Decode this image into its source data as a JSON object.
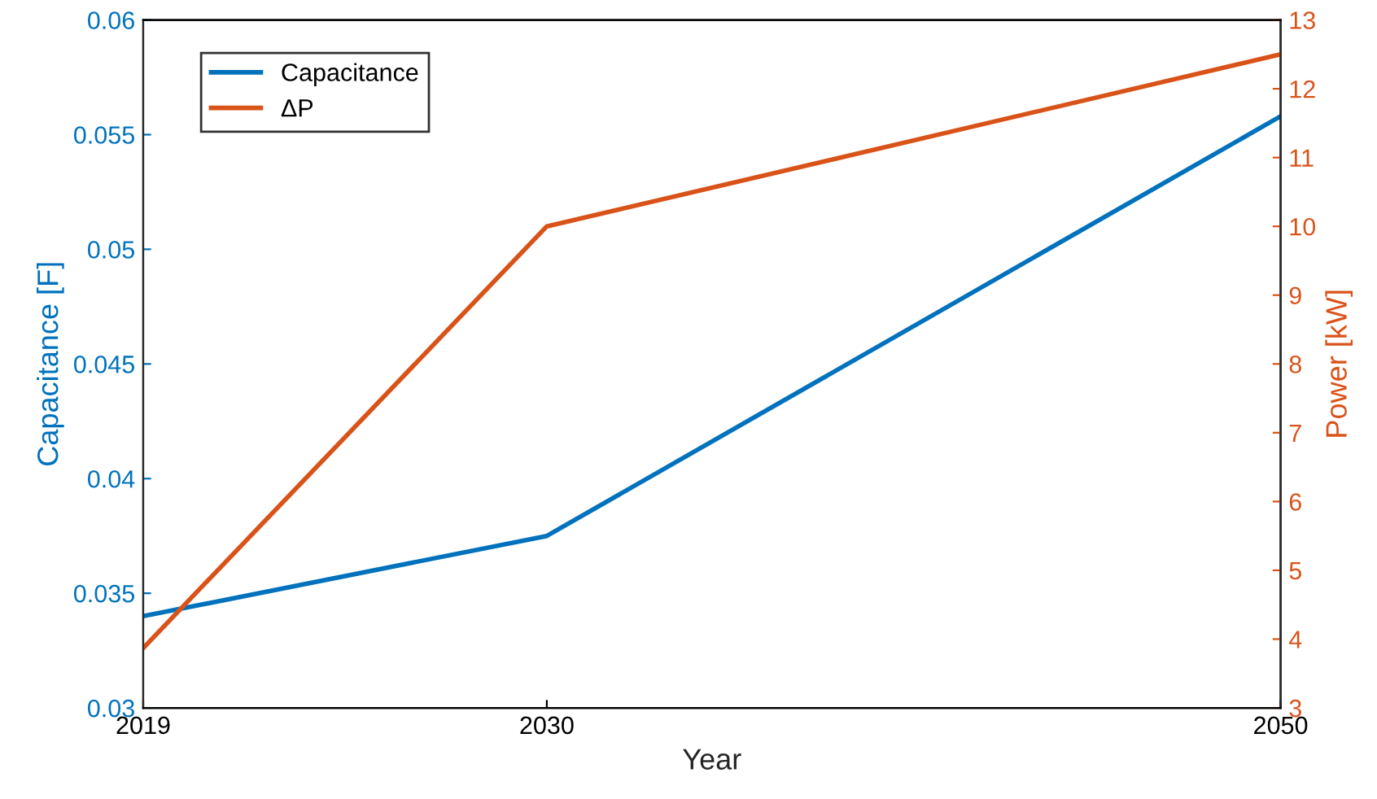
{
  "chart_data": {
    "type": "line",
    "xlabel": "Year",
    "ylabel": "Capacitance [F]",
    "y2label": "Power [kW]",
    "x": [
      2019,
      2030,
      2050
    ],
    "series": [
      {
        "name": "Capacitance",
        "color": "#0072bd",
        "values": [
          0.034,
          0.0375,
          0.0558
        ]
      },
      {
        "name": "ΔP",
        "color": "#d95319",
        "values": [
          3.87,
          10.0,
          12.5
        ],
        "axis": "y2"
      }
    ],
    "xlim": [
      2019,
      2050
    ],
    "xticks": [
      2019,
      2030,
      2050
    ],
    "ylim": [
      0.03,
      0.06
    ],
    "yticks": [
      0.03,
      0.035,
      0.04,
      0.045,
      0.05,
      0.055,
      0.06
    ],
    "y2lim": [
      3,
      13
    ],
    "y2ticks": [
      3,
      4,
      5,
      6,
      7,
      8,
      9,
      10,
      11,
      12,
      13
    ],
    "legend": "top left",
    "grid": false,
    "marker": "none",
    "line_style": "solid"
  }
}
